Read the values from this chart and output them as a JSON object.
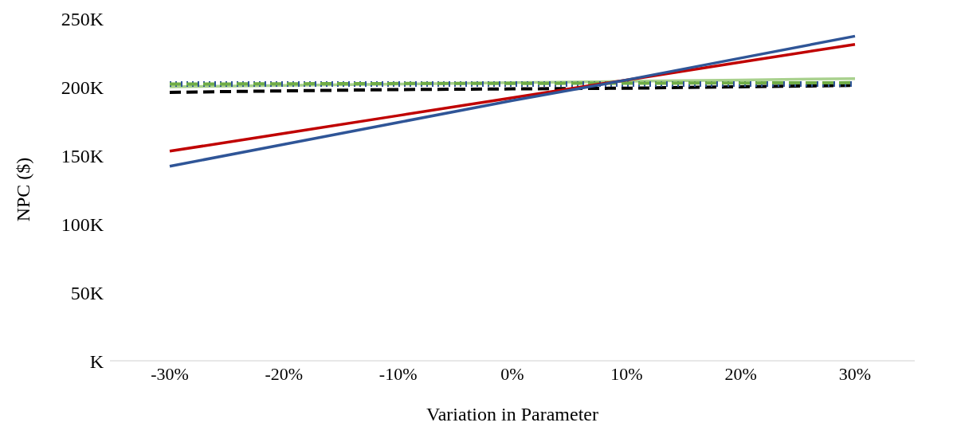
{
  "chart_data": {
    "type": "line",
    "xlabel": "Variation in Parameter",
    "ylabel": "NPC ($)",
    "categories": [
      "-30%",
      "-20%",
      "-10%",
      "0%",
      "10%",
      "20%",
      "30%"
    ],
    "ylim": [
      0,
      250000
    ],
    "yticks": [
      {
        "value": 0,
        "label": "K"
      },
      {
        "value": 50000,
        "label": "50K"
      },
      {
        "value": 100000,
        "label": "100K"
      },
      {
        "value": 150000,
        "label": "150K"
      },
      {
        "value": 200000,
        "label": "200K"
      },
      {
        "value": 250000,
        "label": "250K"
      }
    ],
    "grid": false,
    "legend": false,
    "marker": "none",
    "series": [
      {
        "color": "#a9d18e",
        "line_style": "solid",
        "values": [
          200000,
          201000,
          202000,
          203000,
          204000,
          205000,
          206000
        ]
      },
      {
        "color": "#000000",
        "line_style": "dashed",
        "values": [
          196000,
          197000,
          198000,
          198500,
          199000,
          200000,
          201000
        ]
      },
      {
        "color": "#2f5597",
        "line_style": "dotted",
        "values": [
          202000,
          202000,
          202000,
          202000,
          202000,
          202000,
          202000
        ]
      },
      {
        "color": "#70ad47",
        "line_style": "dashed",
        "values": [
          202000,
          202200,
          202400,
          202500,
          202600,
          202800,
          203000
        ]
      },
      {
        "color": "#c00000",
        "line_style": "solid",
        "values": [
          153000,
          166000,
          179000,
          192000,
          205000,
          218000,
          231000
        ]
      },
      {
        "color": "#2f5597",
        "line_style": "solid",
        "values": [
          142000,
          158000,
          174000,
          190000,
          205000,
          221000,
          237000
        ]
      }
    ]
  }
}
